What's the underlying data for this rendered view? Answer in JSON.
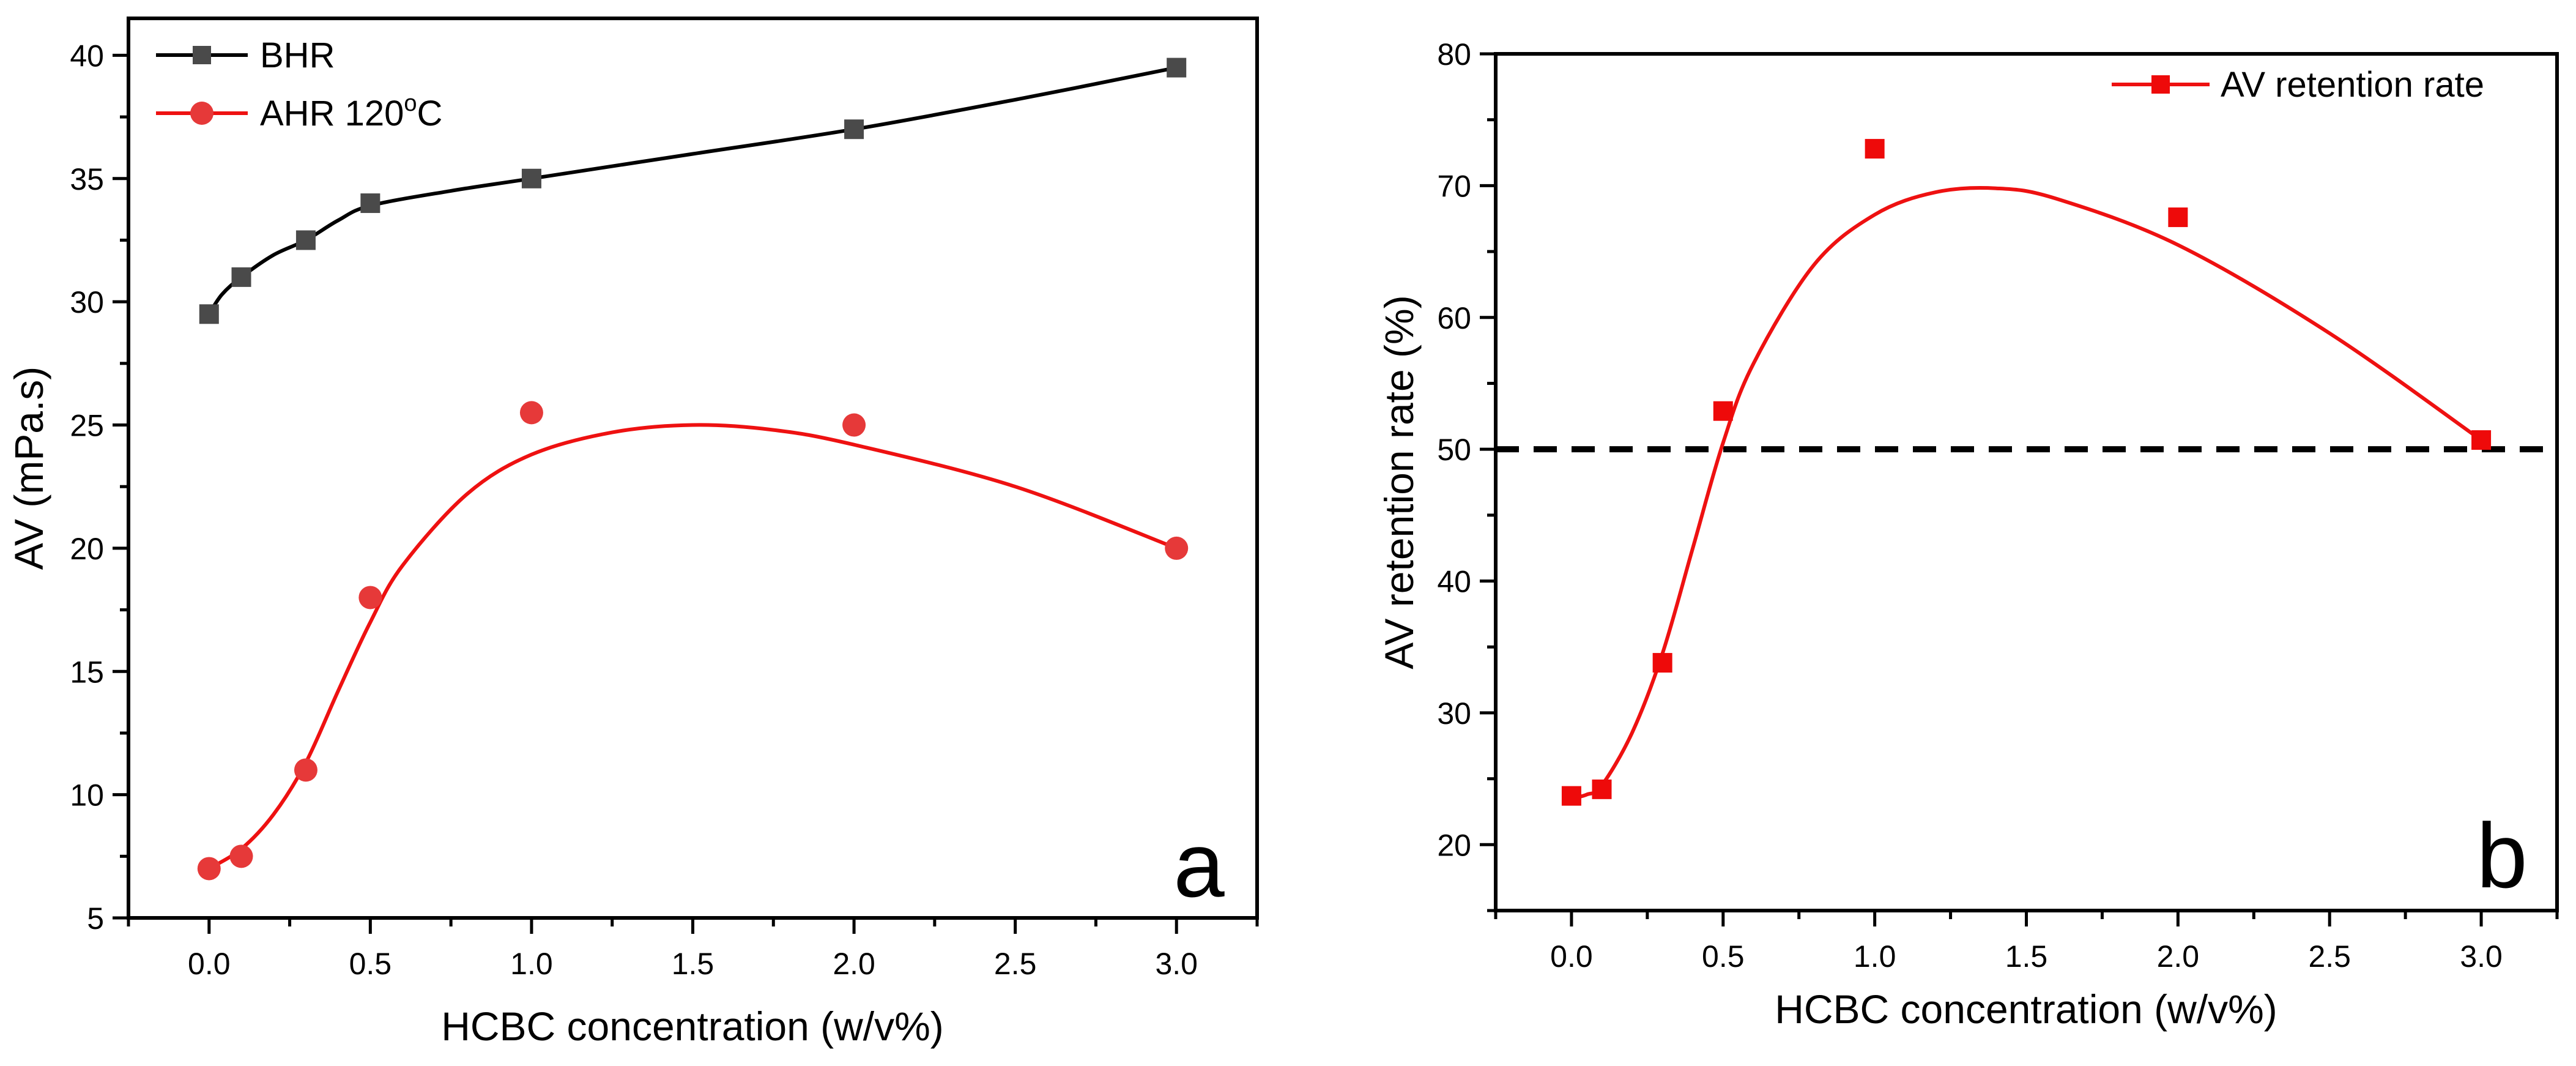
{
  "chart_data": [
    {
      "type": "line",
      "panel_label": "a",
      "xlabel": "HCBC concentration (w/v%)",
      "ylabel": "AV (mPa.s)",
      "xlim": [
        -0.25,
        3.25
      ],
      "ylim": [
        5,
        41.5
      ],
      "x_ticks": [
        0.0,
        0.5,
        1.0,
        1.5,
        2.0,
        2.5,
        3.0
      ],
      "x_tick_labels": [
        "0.0",
        "0.5",
        "1.0",
        "1.5",
        "2.0",
        "2.5",
        "3.0"
      ],
      "y_ticks": [
        5,
        10,
        15,
        20,
        25,
        30,
        35,
        40
      ],
      "y_tick_labels": [
        "5",
        "10",
        "15",
        "20",
        "25",
        "30",
        "35",
        "40"
      ],
      "legend_position": "top-left",
      "series": [
        {
          "name": "BHR",
          "marker": "square",
          "color": "#4a4a4a",
          "line_color": "#000000",
          "x": [
            0,
            0.1,
            0.3,
            0.5,
            1.0,
            2.0,
            3.0
          ],
          "y": [
            29.5,
            31.0,
            32.5,
            34.0,
            35.0,
            37.0,
            39.5
          ],
          "curve_x": [
            0,
            0.04,
            0.1,
            0.2,
            0.3,
            0.4,
            0.5,
            0.75,
            1.0,
            1.5,
            2.0,
            2.5,
            3.0
          ],
          "curve_y": [
            29.5,
            30.3,
            31.0,
            31.9,
            32.5,
            33.3,
            33.9,
            34.5,
            35.0,
            36.0,
            37.0,
            38.2,
            39.5
          ]
        },
        {
          "name": "AHR 120",
          "name_sup": "o",
          "name_suffix": "C",
          "marker": "circle",
          "color": "#e63939",
          "line_color": "#ee1111",
          "x": [
            0,
            0.1,
            0.3,
            0.5,
            1.0,
            2.0,
            3.0
          ],
          "y": [
            7.0,
            7.5,
            11.0,
            18.0,
            25.5,
            25.0,
            20.0
          ],
          "curve_x": [
            0,
            0.1,
            0.2,
            0.3,
            0.4,
            0.5,
            0.6,
            0.8,
            1.0,
            1.25,
            1.5,
            1.75,
            2.0,
            2.5,
            3.0
          ],
          "curve_y": [
            7.0,
            7.8,
            9.2,
            11.3,
            14.2,
            17.0,
            19.3,
            22.2,
            23.8,
            24.7,
            25.0,
            24.8,
            24.2,
            22.5,
            20.0
          ]
        }
      ]
    },
    {
      "type": "line",
      "panel_label": "b",
      "xlabel": "HCBC concentration (w/v%)",
      "ylabel": "AV retention rate (%)",
      "xlim": [
        -0.25,
        3.25
      ],
      "ylim": [
        15,
        80
      ],
      "x_ticks": [
        0.0,
        0.5,
        1.0,
        1.5,
        2.0,
        2.5,
        3.0
      ],
      "x_tick_labels": [
        "0.0",
        "0.5",
        "1.0",
        "1.5",
        "2.0",
        "2.5",
        "3.0"
      ],
      "y_ticks": [
        20,
        30,
        40,
        50,
        60,
        70,
        80
      ],
      "y_tick_labels": [
        "20",
        "30",
        "40",
        "50",
        "60",
        "70",
        "80"
      ],
      "legend_position": "top-right",
      "reference_line": {
        "y": 50,
        "style": "dashed",
        "color": "#000000"
      },
      "series": [
        {
          "name": "AV retention rate",
          "marker": "square",
          "color": "#ee0a0a",
          "line_color": "#ee1111",
          "x": [
            0,
            0.1,
            0.3,
            0.5,
            1.0,
            2.0,
            3.0
          ],
          "y": [
            23.7,
            24.2,
            33.8,
            52.9,
            72.8,
            67.6,
            50.7
          ],
          "curve_x": [
            0,
            0.05,
            0.1,
            0.2,
            0.3,
            0.4,
            0.5,
            0.6,
            0.8,
            1.0,
            1.2,
            1.4,
            1.6,
            2.0,
            2.5,
            3.0
          ],
          "curve_y": [
            23.5,
            23.8,
            24.5,
            28.5,
            34.5,
            42.5,
            50.5,
            56.5,
            64.0,
            67.8,
            69.5,
            69.8,
            69.0,
            65.5,
            58.8,
            50.7
          ]
        }
      ]
    }
  ]
}
